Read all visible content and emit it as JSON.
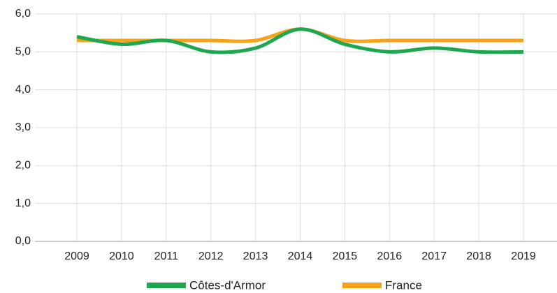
{
  "chart_data": {
    "type": "line",
    "x": [
      2009,
      2010,
      2011,
      2012,
      2013,
      2014,
      2015,
      2016,
      2017,
      2018,
      2019
    ],
    "series": [
      {
        "name": "France",
        "color": "#f7a21b",
        "values": [
          5.3,
          5.3,
          5.3,
          5.3,
          5.3,
          5.6,
          5.3,
          5.3,
          5.3,
          5.3,
          5.3
        ]
      },
      {
        "name": "Côtes-d'Armor",
        "color": "#1fa750",
        "values": [
          5.4,
          5.2,
          5.3,
          5.0,
          5.1,
          5.6,
          5.2,
          5.0,
          5.1,
          5.0,
          5.0
        ]
      }
    ],
    "ylim": [
      0,
      6
    ],
    "yticks": [
      {
        "value": 0,
        "label": "0,0"
      },
      {
        "value": 1,
        "label": "1,0"
      },
      {
        "value": 2,
        "label": "2,0"
      },
      {
        "value": 3,
        "label": "3,0"
      },
      {
        "value": 4,
        "label": "4,0"
      },
      {
        "value": 5,
        "label": "5,0"
      },
      {
        "value": 6,
        "label": "6,0"
      }
    ],
    "grid": true,
    "legend": "bottom"
  }
}
